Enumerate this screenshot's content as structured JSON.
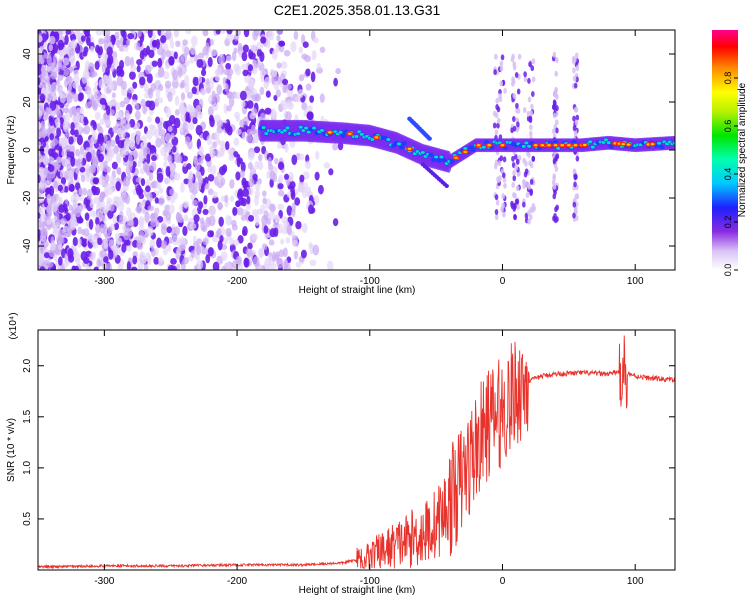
{
  "title": "C2E1.2025.358.01.13.G31",
  "chart_data": [
    {
      "type": "heatmap",
      "xlabel": "Height of straight line (km)",
      "ylabel": "Frequency (Hz)",
      "xlim": [
        -350,
        130
      ],
      "ylim": [
        -50,
        50
      ],
      "xticks": [
        -300,
        -200,
        -100,
        0,
        100
      ],
      "xtick_labels": [
        "-300",
        "-200",
        "-100",
        "0",
        "100"
      ],
      "yticks": [
        -40,
        -20,
        0,
        20,
        40
      ],
      "ytick_labels": [
        "-40",
        "-20",
        "0",
        "20",
        "40"
      ],
      "colorbar": {
        "label": "Normalized spectral amplitude",
        "range": [
          0,
          1
        ],
        "ticks": [
          0.0,
          0.2,
          0.4,
          0.6,
          0.8
        ],
        "tick_labels": [
          "0.0",
          "0.2",
          "0.4",
          "0.6",
          "0.8"
        ]
      },
      "ridge": {
        "x": [
          -180,
          -150,
          -120,
          -100,
          -80,
          -60,
          -40,
          -20,
          0,
          20,
          40,
          60,
          80,
          100,
          130
        ],
        "y": [
          8,
          8,
          7,
          6,
          3,
          -2,
          -5,
          2,
          2,
          2,
          2,
          2,
          3,
          2,
          3
        ]
      },
      "grid": false,
      "legend": "none"
    },
    {
      "type": "line",
      "xlabel": "Height of straight line (km)",
      "ylabel": "SNR (10 * v/v)",
      "y_multiplier": "(x10⁴)",
      "xlim": [
        -350,
        130
      ],
      "ylim": [
        0,
        2.35
      ],
      "xticks": [
        -300,
        -200,
        -100,
        0,
        100
      ],
      "xtick_labels": [
        "-300",
        "-200",
        "-100",
        "0",
        "100"
      ],
      "yticks": [
        0.5,
        1.0,
        1.5,
        2.0
      ],
      "ytick_labels": [
        "0.5",
        "1.0",
        "1.5",
        "2.0"
      ],
      "color": "#e8322b",
      "series": [
        {
          "x": [
            -350,
            -300,
            -250,
            -200,
            -150,
            -120,
            -100,
            -80,
            -60,
            -50,
            -40,
            -30,
            -20,
            -10,
            0,
            10,
            20,
            30,
            40,
            60,
            80,
            90,
            100,
            110,
            130
          ],
          "y": [
            0.03,
            0.04,
            0.04,
            0.05,
            0.05,
            0.07,
            0.13,
            0.25,
            0.35,
            0.45,
            0.65,
            0.9,
            1.2,
            1.45,
            1.55,
            1.75,
            1.85,
            1.9,
            1.92,
            1.93,
            1.92,
            1.95,
            1.9,
            1.88,
            1.86
          ]
        }
      ],
      "grid": false,
      "legend": "none"
    }
  ]
}
